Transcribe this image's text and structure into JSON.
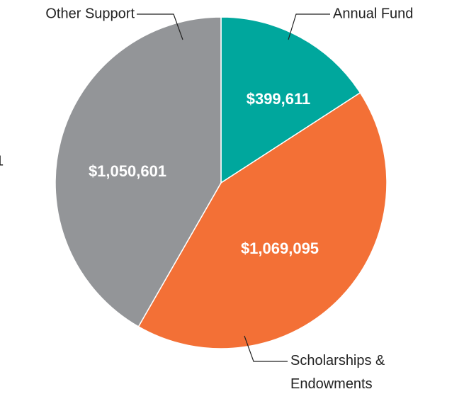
{
  "chart_data": {
    "type": "pie",
    "categories": [
      "Annual Fund",
      "Scholarships & Endowments",
      "Other Support"
    ],
    "values": [
      399611,
      1069095,
      1050601
    ],
    "value_labels": [
      "$399,611",
      "$1,069,095",
      "$1,050,601"
    ],
    "colors": [
      "#00a79d",
      "#f37036",
      "#939598"
    ],
    "annotation": "1"
  }
}
